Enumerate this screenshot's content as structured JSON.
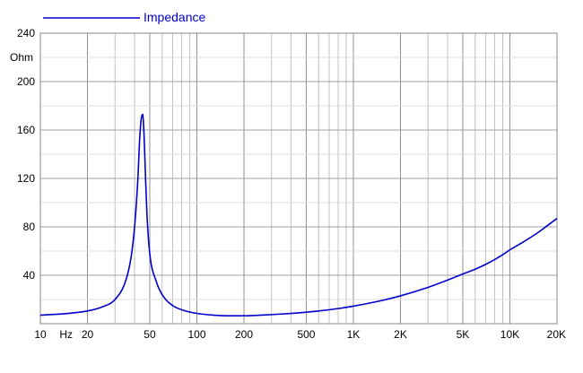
{
  "chart_data": {
    "type": "line",
    "title": "",
    "xlabel": "Hz",
    "ylabel": "Ohm",
    "x_scale": "log",
    "xlim": [
      10,
      20000
    ],
    "ylim": [
      0,
      240
    ],
    "grid": true,
    "legend_placement": "top-left",
    "x_tick_values": [
      10,
      20,
      50,
      100,
      200,
      500,
      1000,
      2000,
      5000,
      10000,
      20000
    ],
    "x_tick_labels": [
      "10",
      "20",
      "50",
      "100",
      "200",
      "500",
      "1K",
      "2K",
      "5K",
      "10K",
      "20K"
    ],
    "y_tick_values": [
      40,
      80,
      120,
      160,
      200,
      240
    ],
    "y_tick_labels": [
      "40",
      "80",
      "120",
      "160",
      "200",
      "240"
    ],
    "series": [
      {
        "name": "Impedance",
        "color": "#0000cc",
        "x": [
          10,
          15,
          20,
          25,
          30,
          35,
          38,
          40,
          42,
          43,
          44,
          45,
          46,
          47,
          48,
          50,
          55,
          60,
          70,
          80,
          100,
          130,
          160,
          200,
          250,
          300,
          400,
          500,
          600,
          800,
          1000,
          1500,
          2000,
          3000,
          4000,
          5000,
          6000,
          7000,
          8000,
          9000,
          10000,
          12000,
          15000,
          20000
        ],
        "y": [
          7,
          8.5,
          10.5,
          14,
          20,
          35,
          55,
          80,
          120,
          150,
          168,
          173,
          155,
          120,
          90,
          58,
          35,
          24,
          15,
          11.5,
          8.5,
          7,
          6.5,
          6.5,
          7,
          7.5,
          8.5,
          9.5,
          10.5,
          12.5,
          14.5,
          19,
          23,
          30,
          36,
          41,
          45,
          49,
          53,
          57,
          61,
          67,
          75,
          87
        ]
      }
    ]
  }
}
